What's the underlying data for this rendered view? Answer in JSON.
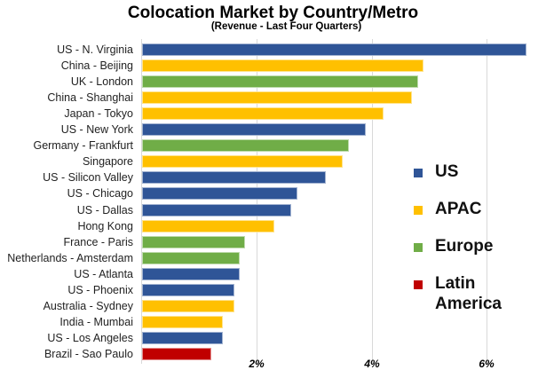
{
  "chart_data": {
    "type": "bar",
    "orientation": "horizontal",
    "title": "Colocation Market by Country/Metro",
    "subtitle": "(Revenue - Last Four Quarters)",
    "xlabel": "",
    "ylabel": "",
    "x_unit": "%",
    "xlim": [
      0,
      7
    ],
    "x_ticks": [
      "2%",
      "4%",
      "6%"
    ],
    "grid": true,
    "legend_position": "right",
    "colors": {
      "US": "#2f5597",
      "APAC": "#ffc000",
      "Europe": "#70ad47",
      "Latin America": "#c00000"
    },
    "legend": [
      {
        "label": "US",
        "color": "#2f5597"
      },
      {
        "label": "APAC",
        "color": "#ffc000"
      },
      {
        "label": "Europe",
        "color": "#70ad47"
      },
      {
        "label": "Latin\nAmerica",
        "color": "#c00000"
      }
    ],
    "categories": [
      "US - N. Virginia",
      "China - Beijing",
      "UK - London",
      "China - Shanghai",
      "Japan - Tokyo",
      "US - New York",
      "Germany - Frankfurt",
      "Singapore",
      "US - Silicon Valley",
      "US - Chicago",
      "US - Dallas",
      "Hong Kong",
      "France - Paris",
      "Netherlands - Amsterdam",
      "US - Atlanta",
      "US - Phoenix",
      "Australia - Sydney",
      "India - Mumbai",
      "US - Los Angeles",
      "Brazil - Sao Paulo"
    ],
    "regions": [
      "US",
      "APAC",
      "Europe",
      "APAC",
      "APAC",
      "US",
      "Europe",
      "APAC",
      "US",
      "US",
      "US",
      "APAC",
      "Europe",
      "Europe",
      "US",
      "US",
      "APAC",
      "APAC",
      "US",
      "Latin America"
    ],
    "values": [
      6.7,
      4.9,
      4.8,
      4.7,
      4.2,
      3.9,
      3.6,
      3.5,
      3.2,
      2.7,
      2.6,
      2.3,
      1.8,
      1.7,
      1.7,
      1.6,
      1.6,
      1.4,
      1.4,
      1.2
    ]
  }
}
